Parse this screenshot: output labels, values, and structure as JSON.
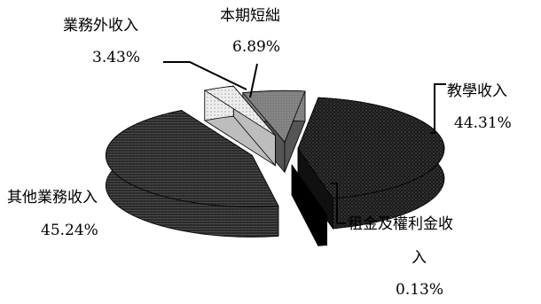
{
  "chart_data": {
    "type": "pie",
    "three_d": true,
    "exploded": true,
    "legend": "none",
    "slices": [
      {
        "name": "教學收入",
        "value": 44.31,
        "label": "44.31%",
        "color": "#1e1e1e",
        "pattern": "dots"
      },
      {
        "name": "租金及權利金收入",
        "name_line1": "租金及權利金收",
        "name_line2": "入",
        "value": 0.13,
        "label": "0.13%",
        "color": "#000000",
        "pattern": "solid"
      },
      {
        "name": "其他業務收入",
        "value": 45.24,
        "label": "45.24%",
        "color": "#2a2a2a",
        "pattern": "hatch"
      },
      {
        "name": "業務外收入",
        "value": 3.43,
        "label": "3.43%",
        "color": "#e8e8e8",
        "pattern": "light"
      },
      {
        "name": "本期短絀",
        "value": 6.89,
        "label": "6.89%",
        "color": "#7a7a7a",
        "pattern": "grey"
      }
    ]
  }
}
